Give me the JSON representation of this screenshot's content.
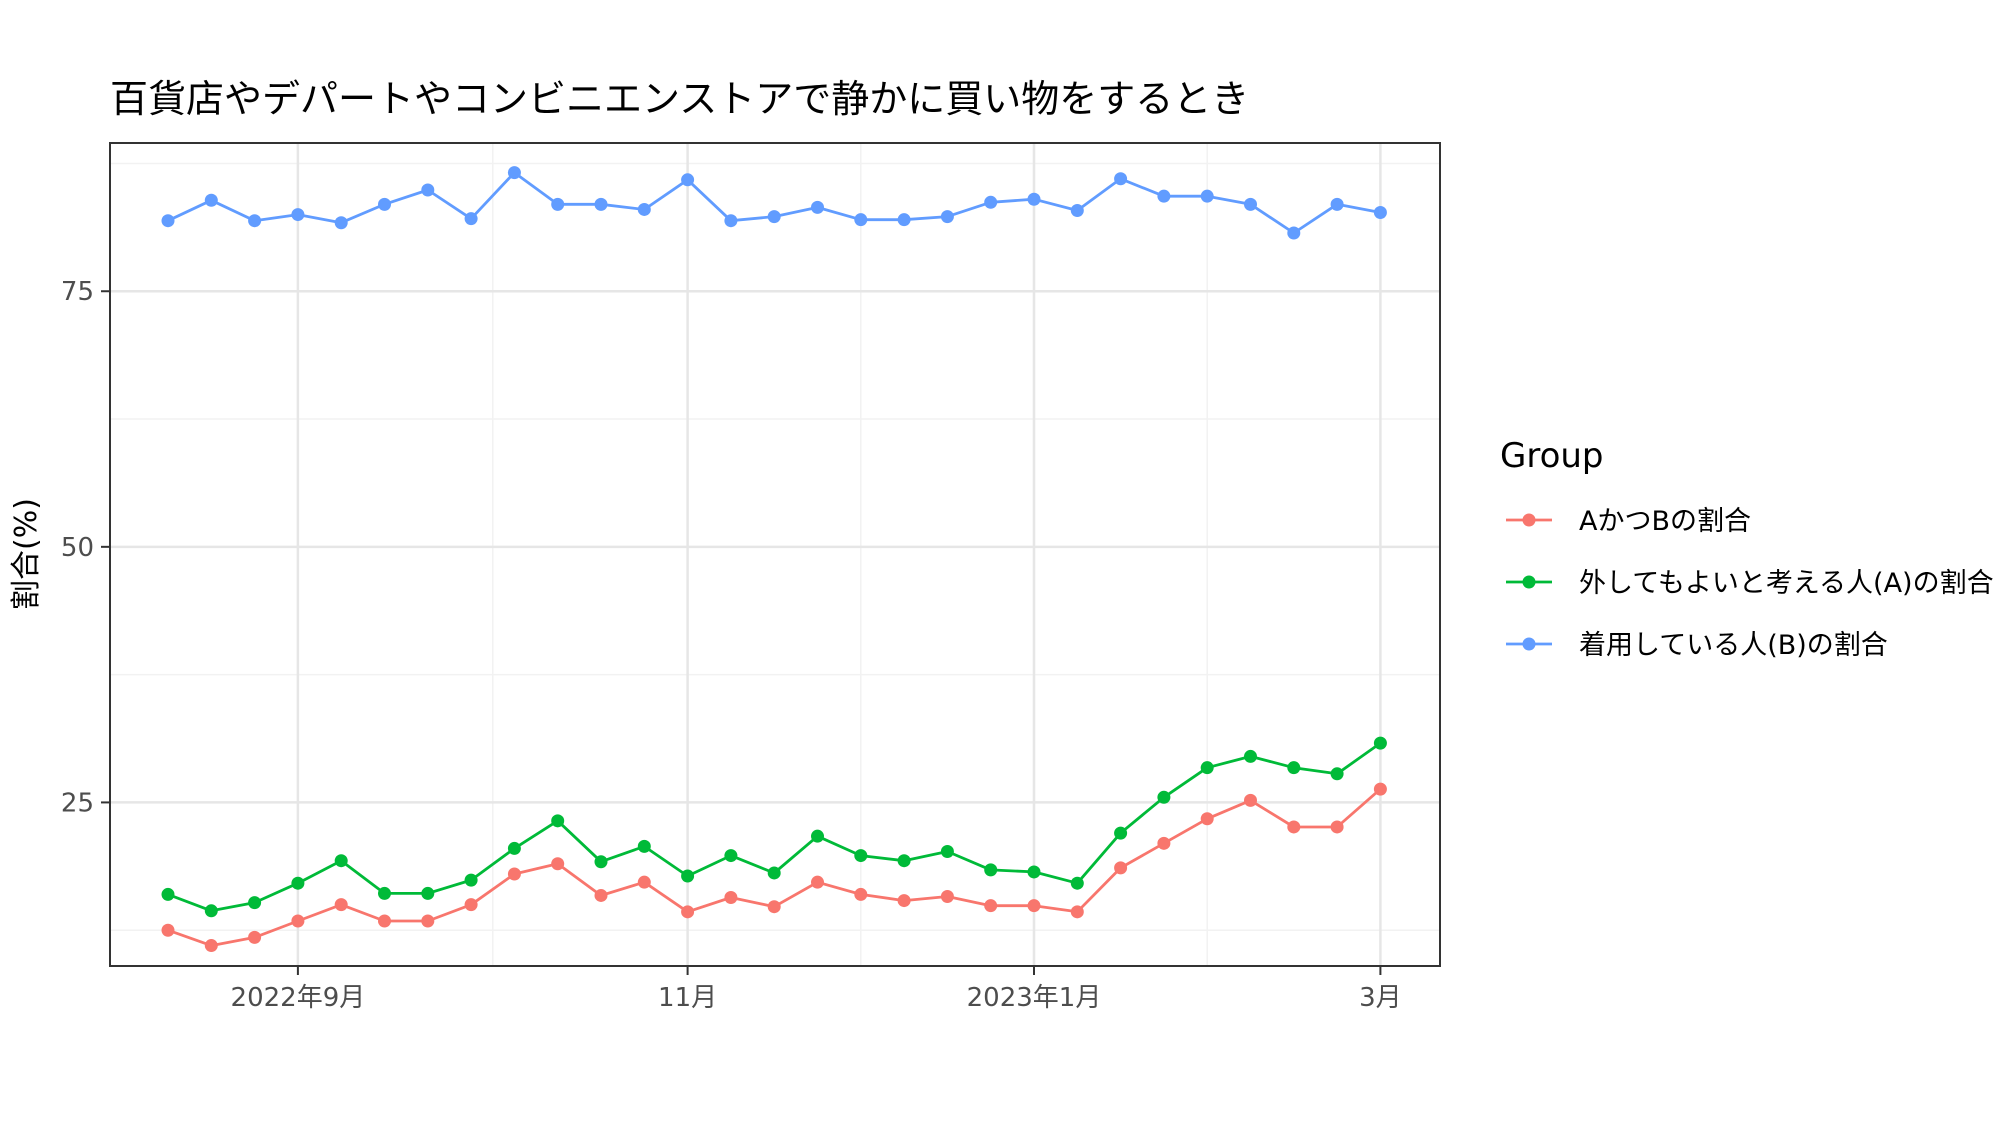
{
  "chart_data": {
    "type": "line",
    "title": "百貨店やデパートやコンビニエンストアで静かに買い物をするとき",
    "xlabel": "",
    "ylabel": "割合(%)",
    "ylim": [
      9,
      89.5
    ],
    "yticks": [
      25,
      50,
      75
    ],
    "xtick_labels": [
      "2022年9月",
      "11月",
      "2023年1月",
      "3月"
    ],
    "grid": true,
    "legend_title": "Group",
    "legend_position": "right",
    "series": [
      {
        "name": "AかつBの割合",
        "color": "#F8766D",
        "values": [
          12.5,
          11.0,
          11.8,
          13.4,
          15.0,
          13.4,
          13.4,
          15.0,
          18.0,
          19.0,
          15.9,
          17.2,
          14.3,
          15.7,
          14.8,
          17.2,
          16.0,
          15.4,
          15.8,
          14.9,
          14.9,
          14.3,
          18.6,
          21.0,
          23.4,
          25.2,
          22.6,
          22.6,
          26.3
        ]
      },
      {
        "name": "外してもよいと考える人(A)の割合",
        "color": "#00BA38",
        "values": [
          16.0,
          14.4,
          15.2,
          17.1,
          19.3,
          16.1,
          16.1,
          17.4,
          20.5,
          23.2,
          19.2,
          20.7,
          17.8,
          19.8,
          18.1,
          21.7,
          19.8,
          19.3,
          20.2,
          18.4,
          18.2,
          17.1,
          22.0,
          25.5,
          28.4,
          29.5,
          28.4,
          27.8,
          30.8
        ]
      },
      {
        "name": "着用している人(B)の割合",
        "color": "#619CFF",
        "values": [
          81.9,
          83.9,
          81.9,
          82.5,
          81.7,
          83.5,
          84.9,
          82.1,
          86.6,
          83.5,
          83.5,
          83.0,
          85.9,
          81.9,
          82.3,
          83.2,
          82.0,
          82.0,
          82.3,
          83.7,
          84.0,
          82.9,
          86.0,
          84.3,
          84.3,
          83.5,
          80.7,
          83.5,
          82.7
        ]
      }
    ]
  }
}
